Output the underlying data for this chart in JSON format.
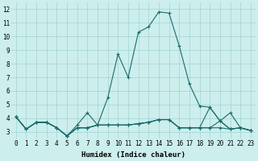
{
  "xlabel": "Humidex (Indice chaleur)",
  "background_color": "#cceeed",
  "grid_color": "#99cccc",
  "line_color": "#1a6b6b",
  "xlim": [
    -0.5,
    23.5
  ],
  "ylim": [
    2.5,
    12.5
  ],
  "xticks": [
    0,
    1,
    2,
    3,
    4,
    5,
    6,
    7,
    8,
    9,
    10,
    11,
    12,
    13,
    14,
    15,
    16,
    17,
    18,
    19,
    20,
    21,
    22,
    23
  ],
  "yticks": [
    3,
    4,
    5,
    6,
    7,
    8,
    9,
    10,
    11,
    12
  ],
  "series": [
    {
      "x": [
        0,
        1,
        2,
        3,
        4,
        5,
        6,
        7,
        8,
        9,
        10,
        11,
        12,
        13,
        14,
        15,
        16,
        17,
        18,
        19,
        20,
        21,
        22,
        23
      ],
      "y": [
        4.1,
        3.2,
        3.7,
        3.7,
        3.3,
        2.7,
        3.5,
        4.4,
        3.5,
        5.5,
        8.7,
        7.0,
        10.3,
        10.7,
        11.8,
        11.7,
        9.3,
        6.5,
        4.9,
        4.8,
        3.8,
        4.4,
        3.3,
        3.1
      ]
    },
    {
      "x": [
        0,
        1,
        2,
        3,
        4,
        5,
        6,
        7,
        8,
        9,
        10,
        11,
        12,
        13,
        14,
        15,
        16,
        17,
        18,
        19,
        20,
        21,
        22,
        23
      ],
      "y": [
        4.1,
        3.2,
        3.7,
        3.7,
        3.3,
        2.7,
        3.3,
        3.3,
        3.5,
        3.5,
        3.5,
        3.5,
        3.6,
        3.7,
        3.9,
        3.9,
        3.3,
        3.3,
        3.3,
        4.8,
        3.8,
        3.2,
        3.3,
        3.1
      ]
    },
    {
      "x": [
        0,
        1,
        2,
        3,
        4,
        5,
        6,
        7,
        8,
        9,
        10,
        11,
        12,
        13,
        14,
        15,
        16,
        17,
        18,
        19,
        20,
        21,
        22,
        23
      ],
      "y": [
        4.1,
        3.2,
        3.7,
        3.7,
        3.3,
        2.7,
        3.3,
        3.3,
        3.5,
        3.5,
        3.5,
        3.5,
        3.6,
        3.7,
        3.9,
        3.9,
        3.3,
        3.3,
        3.3,
        3.3,
        3.8,
        3.2,
        3.3,
        3.1
      ]
    },
    {
      "x": [
        0,
        1,
        2,
        3,
        4,
        5,
        6,
        7,
        8,
        9,
        10,
        11,
        12,
        13,
        14,
        15,
        16,
        17,
        18,
        19,
        20,
        21,
        22,
        23
      ],
      "y": [
        4.1,
        3.2,
        3.7,
        3.7,
        3.3,
        2.7,
        3.3,
        3.3,
        3.5,
        3.5,
        3.5,
        3.5,
        3.6,
        3.7,
        3.9,
        3.9,
        3.3,
        3.3,
        3.3,
        3.3,
        3.3,
        3.2,
        3.3,
        3.1
      ]
    }
  ],
  "xlabel_fontsize": 6.5,
  "tick_fontsize": 5.5
}
